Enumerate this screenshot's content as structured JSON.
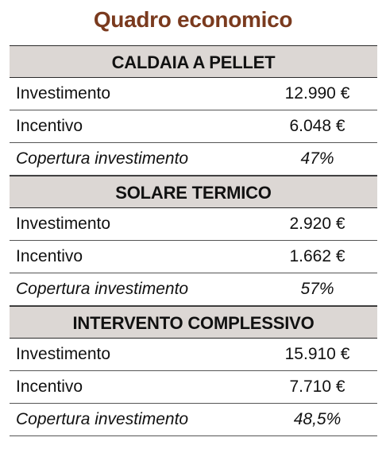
{
  "title": "Quadro economico",
  "sections": [
    {
      "header": "CALDAIA A PELLET",
      "rows": [
        {
          "label": "Investimento",
          "value": "12.990  €"
        },
        {
          "label": "Incentivo",
          "value": "6.048 €"
        },
        {
          "label": "Copertura investimento",
          "value": "47%"
        }
      ]
    },
    {
      "header": "SOLARE TERMICO",
      "rows": [
        {
          "label": "Investimento",
          "value": "2.920 €"
        },
        {
          "label": "Incentivo",
          "value": "1.662 €"
        },
        {
          "label": "Copertura investimento",
          "value": "57%"
        }
      ]
    },
    {
      "header": "INTERVENTO COMPLESSIVO",
      "rows": [
        {
          "label": "Investimento",
          "value": "15.910 €"
        },
        {
          "label": "Incentivo",
          "value": "7.710 €"
        },
        {
          "label": "Copertura investimento",
          "value": "48,5%"
        }
      ]
    }
  ]
}
